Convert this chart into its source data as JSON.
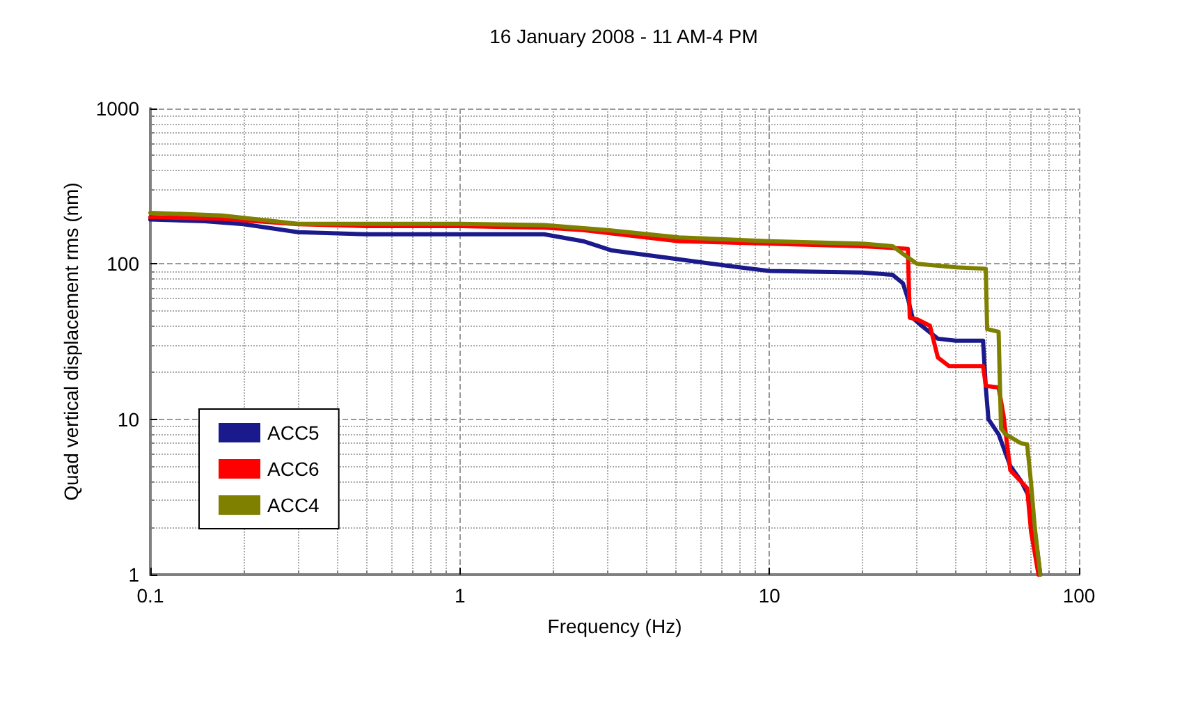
{
  "chart_data": {
    "type": "line",
    "title": "16 January 2008 - 11 AM-4 PM",
    "xlabel": "Frequency (Hz)",
    "ylabel": "Quad vertical displacement rms (nm)",
    "log": "xy",
    "grid": true,
    "legend": "bottom left",
    "marker": "none",
    "line_style": "solid",
    "xlim": [
      0.1,
      100
    ],
    "xticks": [
      0.1,
      1,
      10,
      100
    ],
    "ylim": [
      1,
      1000
    ],
    "yticks": [
      1,
      10,
      100,
      1000
    ],
    "series": [
      {
        "name": "ACC5",
        "color": "#1a1a8c",
        "x": [
          0.1,
          0.15,
          0.2,
          0.3,
          0.5,
          1,
          1.87,
          2.5,
          3.1,
          5.1,
          8,
          10,
          20,
          25,
          27,
          28,
          29,
          31,
          35,
          40,
          49,
          50,
          51,
          55,
          60,
          65,
          70,
          75
        ],
        "values": [
          193,
          188,
          180,
          160,
          155,
          155,
          155,
          140,
          122,
          107,
          95,
          90,
          88,
          85,
          75,
          60,
          45,
          40,
          33,
          32,
          32,
          16,
          10,
          8,
          5,
          4,
          3,
          1
        ]
      },
      {
        "name": "ACC6",
        "color": "#ff0000",
        "x": [
          0.1,
          0.17,
          0.3,
          0.5,
          1,
          1.87,
          2.5,
          5.1,
          10,
          20,
          28,
          28.4,
          30,
          33,
          35,
          38,
          49,
          50,
          55,
          57,
          60,
          68,
          70,
          74
        ],
        "values": [
          200,
          195,
          180,
          175,
          175,
          171,
          165,
          140,
          135,
          130,
          125,
          45,
          44,
          40,
          25,
          22,
          22,
          16.4,
          16,
          10.7,
          4.7,
          3.6,
          1.9,
          1
        ]
      },
      {
        "name": "ACC4",
        "color": "#808000",
        "x": [
          0.1,
          0.17,
          0.3,
          0.5,
          1,
          1.87,
          3,
          5.1,
          10,
          20,
          25,
          28,
          30,
          40,
          50,
          50.5,
          55,
          56,
          58,
          65,
          68,
          70,
          72,
          75
        ],
        "values": [
          213,
          205,
          181,
          181,
          181,
          178,
          165,
          148,
          140,
          135,
          130,
          110,
          100,
          95,
          93,
          38,
          36.6,
          8.7,
          8,
          7,
          6.9,
          3.9,
          2,
          1
        ]
      }
    ]
  }
}
